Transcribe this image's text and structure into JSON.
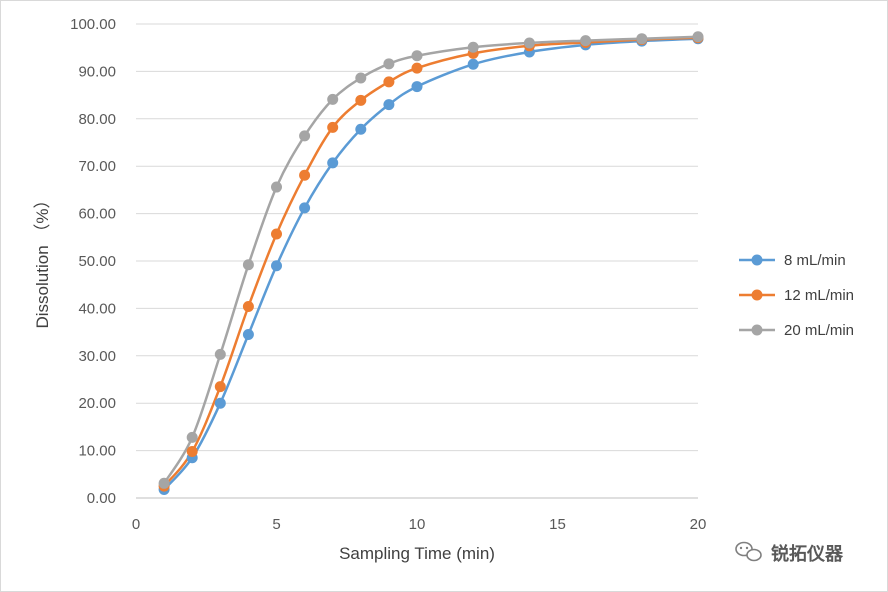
{
  "chart_data": {
    "type": "line",
    "xlabel": "Sampling Time (min)",
    "ylabel": "Dissolution （%）",
    "xlim": [
      0,
      20
    ],
    "ylim": [
      0,
      100
    ],
    "xticks": [
      0,
      5,
      10,
      15,
      20
    ],
    "xtick_labels": [
      "0",
      "5",
      "10",
      "15",
      "20"
    ],
    "yticks": [
      0,
      10,
      20,
      30,
      40,
      50,
      60,
      70,
      80,
      90,
      100
    ],
    "ytick_labels": [
      "0.00",
      "10.00",
      "20.00",
      "30.00",
      "40.00",
      "50.00",
      "60.00",
      "70.00",
      "80.00",
      "90.00",
      "100.00"
    ],
    "grid": "horizontal",
    "legend": "right",
    "x": [
      1,
      2,
      3,
      4,
      5,
      6,
      7,
      8,
      9,
      10,
      12,
      14,
      16,
      18,
      20
    ],
    "series": [
      {
        "name": "8 mL/min",
        "color": "#5B9BD5",
        "values": [
          1.8,
          8.5,
          20.0,
          34.5,
          49.0,
          61.2,
          70.7,
          77.8,
          83.0,
          86.8,
          91.5,
          94.1,
          95.6,
          96.4,
          96.9
        ]
      },
      {
        "name": "12 mL/min",
        "color": "#ED7D31",
        "values": [
          2.5,
          9.8,
          23.5,
          40.4,
          55.7,
          68.1,
          78.2,
          83.9,
          87.8,
          90.7,
          93.8,
          95.4,
          96.1,
          96.7,
          97.1
        ]
      },
      {
        "name": "20 mL/min",
        "color": "#A5A5A5",
        "values": [
          3.1,
          12.8,
          30.3,
          49.2,
          65.6,
          76.4,
          84.1,
          88.6,
          91.6,
          93.3,
          95.1,
          96.0,
          96.5,
          96.9,
          97.3
        ]
      }
    ]
  },
  "watermark": {
    "icon": "wechat-icon",
    "text": "锐拓仪器"
  }
}
